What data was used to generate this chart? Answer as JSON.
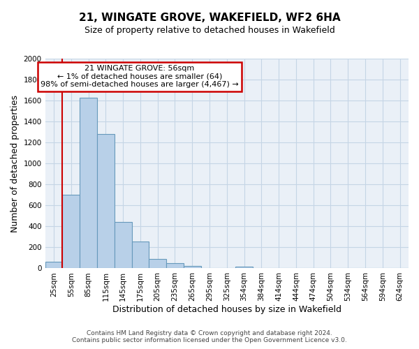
{
  "title": "21, WINGATE GROVE, WAKEFIELD, WF2 6HA",
  "subtitle": "Size of property relative to detached houses in Wakefield",
  "xlabel": "Distribution of detached houses by size in Wakefield",
  "ylabel": "Number of detached properties",
  "bar_labels": [
    "25sqm",
    "55sqm",
    "85sqm",
    "115sqm",
    "145sqm",
    "175sqm",
    "205sqm",
    "235sqm",
    "265sqm",
    "295sqm",
    "325sqm",
    "354sqm",
    "384sqm",
    "414sqm",
    "444sqm",
    "474sqm",
    "504sqm",
    "534sqm",
    "564sqm",
    "594sqm",
    "624sqm"
  ],
  "bar_values": [
    65,
    700,
    1630,
    1280,
    440,
    255,
    90,
    50,
    25,
    0,
    0,
    15,
    0,
    0,
    0,
    0,
    0,
    0,
    0,
    0,
    0
  ],
  "bar_color": "#b8d0e8",
  "bar_edge_color": "#6699bb",
  "ylim": [
    0,
    2000
  ],
  "yticks": [
    0,
    200,
    400,
    600,
    800,
    1000,
    1200,
    1400,
    1600,
    1800,
    2000
  ],
  "marker_color": "#cc0000",
  "annotation_title": "21 WINGATE GROVE: 56sqm",
  "annotation_line1": "← 1% of detached houses are smaller (64)",
  "annotation_line2": "98% of semi-detached houses are larger (4,467) →",
  "annotation_box_color": "#cc0000",
  "footer_line1": "Contains HM Land Registry data © Crown copyright and database right 2024.",
  "footer_line2": "Contains public sector information licensed under the Open Government Licence v3.0.",
  "background_color": "#eaf0f7",
  "grid_color": "#c5d5e5",
  "title_fontsize": 11,
  "subtitle_fontsize": 9,
  "ylabel_fontsize": 9,
  "xlabel_fontsize": 9,
  "tick_fontsize": 7.5,
  "footer_fontsize": 6.5
}
